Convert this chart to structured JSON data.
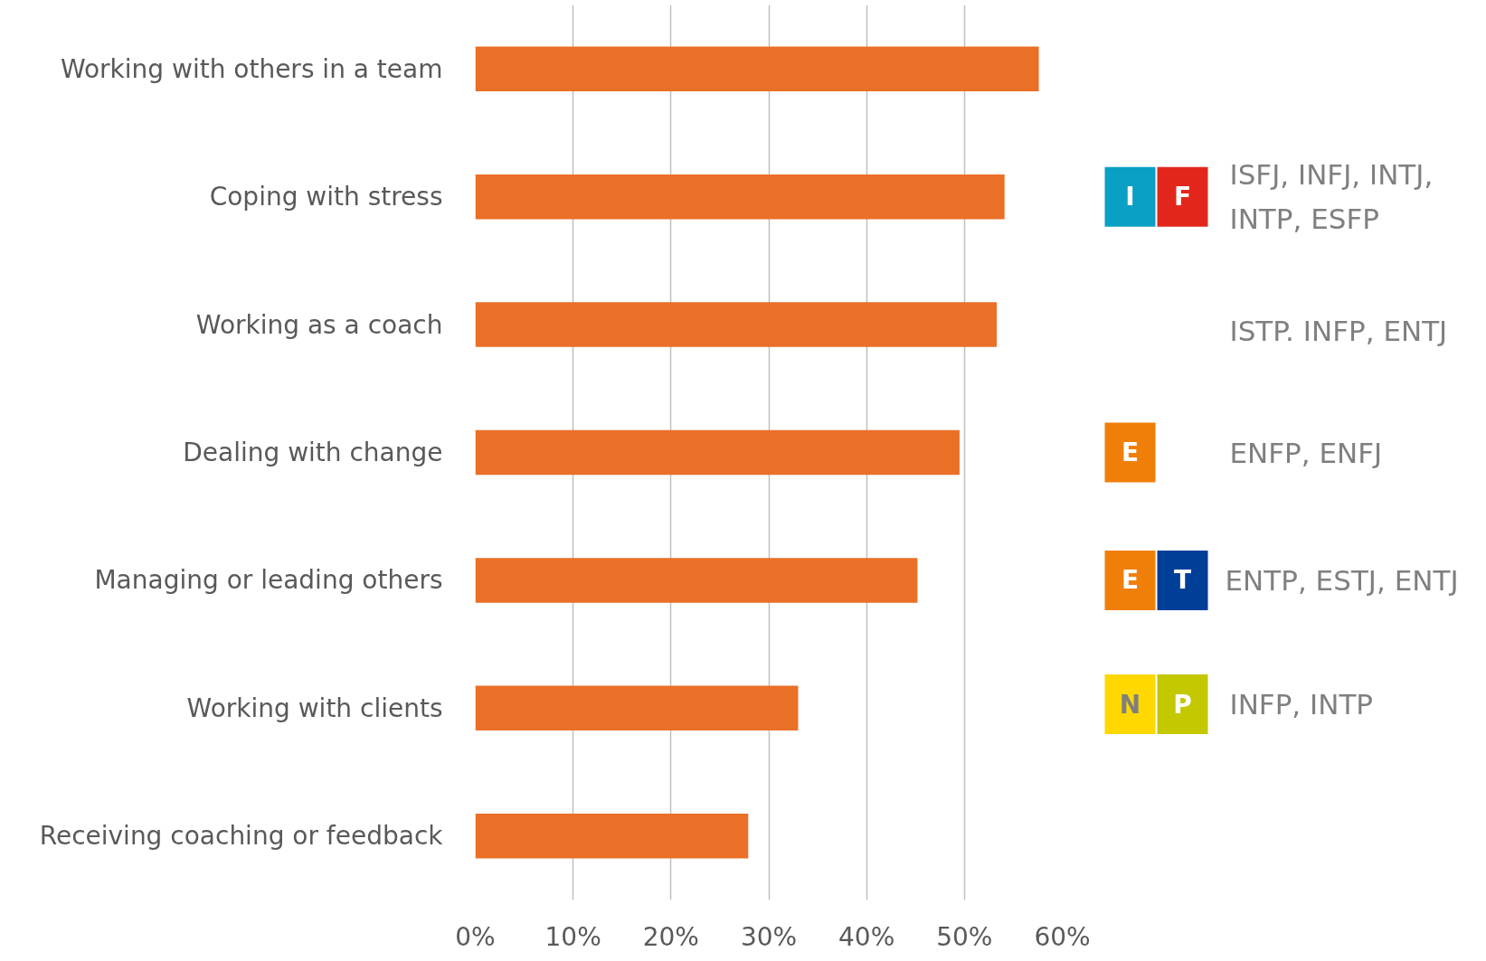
{
  "chart_data": {
    "type": "bar",
    "orientation": "horizontal",
    "color": "#ea6f27",
    "categories": [
      "Working with others in a team",
      "Coping with stress",
      "Working as a coach",
      "Dealing with change",
      "Managing or leading others",
      "Working with clients",
      "Receiving coaching or feedback"
    ],
    "values": [
      57.6,
      54.1,
      53.3,
      49.5,
      45.2,
      33.0,
      27.9
    ],
    "xlim": [
      0,
      60
    ],
    "xticks": [
      {
        "value": 0,
        "label": "0%"
      },
      {
        "value": 10,
        "label": "10%"
      },
      {
        "value": 20,
        "label": "20%"
      },
      {
        "value": 30,
        "label": "30%"
      },
      {
        "value": 40,
        "label": "40%"
      },
      {
        "value": 50,
        "label": "50%"
      },
      {
        "value": 60,
        "label": "60%"
      }
    ],
    "grid": "x",
    "annotations": [
      "I",
      "F",
      "ISFJ, INFJ, INTJ,\nINTP, ESFP",
      "ISTP. INFP, ENTJ",
      "E",
      "ENFP, ENFJ",
      "E",
      "T",
      "ENTP, ESTJ, ENTJ",
      "N",
      "P",
      "INFP, INTP"
    ]
  }
}
